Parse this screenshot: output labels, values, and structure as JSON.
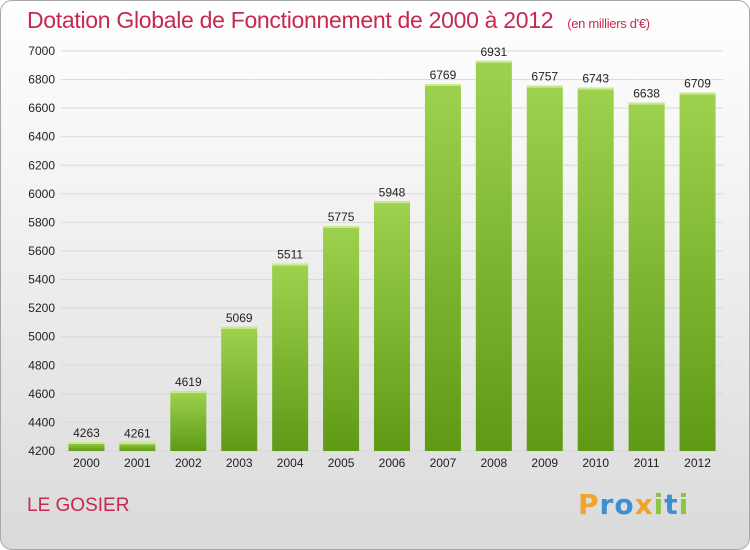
{
  "chart_data": {
    "type": "bar",
    "title": "Dotation Globale de Fonctionnement de 2000 à 2012",
    "subtitle": "(en milliers d'€)",
    "categories": [
      "2000",
      "2001",
      "2002",
      "2003",
      "2004",
      "2005",
      "2006",
      "2007",
      "2008",
      "2009",
      "2010",
      "2011",
      "2012"
    ],
    "values": [
      4263,
      4261,
      4619,
      5069,
      5511,
      5775,
      5948,
      6769,
      6931,
      6757,
      6743,
      6638,
      6709
    ],
    "ylim": [
      4200,
      7000
    ],
    "yticks": [
      4200,
      4400,
      4600,
      4800,
      5000,
      5200,
      5400,
      5600,
      5800,
      6000,
      6200,
      6400,
      6600,
      6800,
      7000
    ],
    "grid": true,
    "bar_color_top": "#9ed24e",
    "bar_color_bottom": "#5e9a16"
  },
  "footer": {
    "place_name": "LE GOSIER",
    "brand": {
      "letters": [
        "P",
        "r",
        "o",
        "x",
        "i",
        "t",
        "i"
      ],
      "colors": [
        "#f0a32d",
        "#3d8fd0",
        "#3d8fd0",
        "#f0a32d",
        "#8cc63f",
        "#3d8fd0",
        "#8cc63f"
      ]
    }
  }
}
